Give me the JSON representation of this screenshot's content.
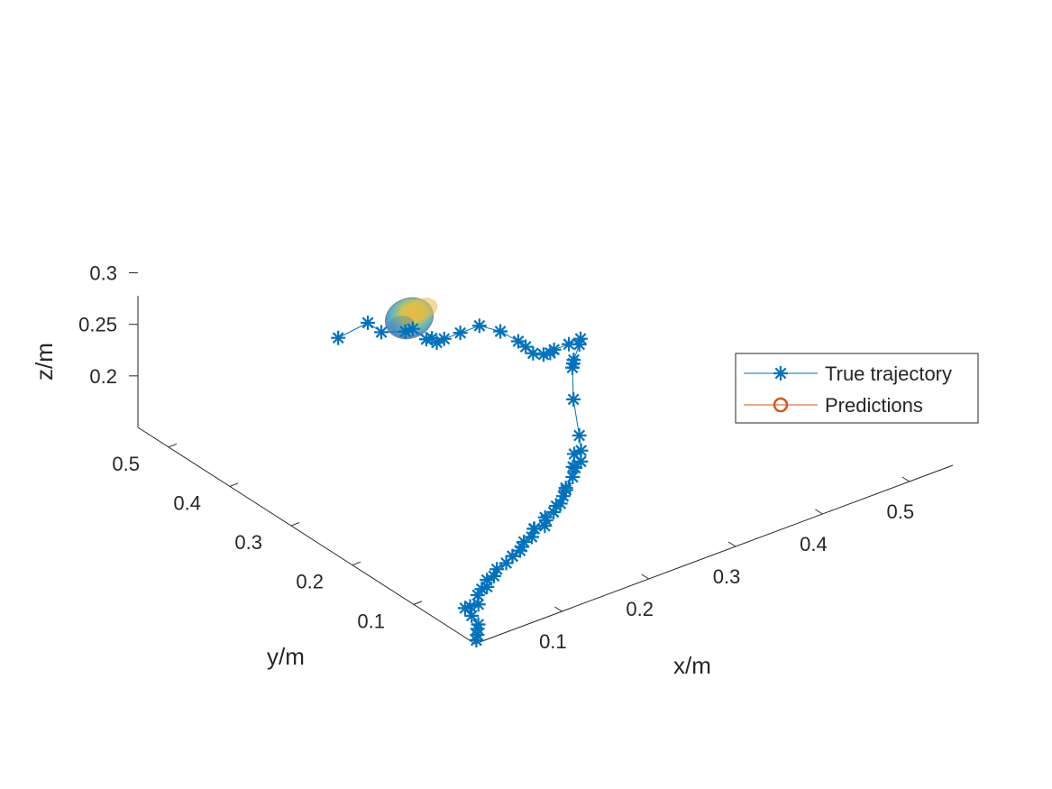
{
  "chart_data": {
    "type": "line",
    "dimensions": "3d",
    "xlabel": "x/m",
    "ylabel": "y/m",
    "zlabel": "z/m",
    "x_ticks": [
      "0.1",
      "0.2",
      "0.3",
      "0.4",
      "0.5"
    ],
    "y_ticks": [
      "0.1",
      "0.2",
      "0.3",
      "0.4",
      "0.5"
    ],
    "z_ticks": [
      "0.2",
      "0.25",
      "0.3"
    ],
    "xlim": [
      0,
      0.55
    ],
    "ylim": [
      0,
      0.55
    ],
    "zlim": [
      0.15,
      0.32
    ],
    "grid": false,
    "legend_position": "right",
    "series": [
      {
        "name": "True trajectory",
        "marker": "asterisk",
        "color": "#0072BD",
        "points_xyz": [
          [
            0.005,
            0.005,
            0.15
          ],
          [
            0.006,
            0.005,
            0.155
          ],
          [
            0.007,
            0.006,
            0.16
          ],
          [
            0.008,
            0.006,
            0.164
          ],
          [
            0.006,
            0.014,
            0.17
          ],
          [
            0.004,
            0.022,
            0.175
          ],
          [
            0.012,
            0.025,
            0.173
          ],
          [
            0.018,
            0.02,
            0.175
          ],
          [
            0.022,
            0.027,
            0.18
          ],
          [
            0.026,
            0.026,
            0.185
          ],
          [
            0.03,
            0.023,
            0.187
          ],
          [
            0.032,
            0.026,
            0.192
          ],
          [
            0.038,
            0.023,
            0.195
          ],
          [
            0.042,
            0.024,
            0.2
          ],
          [
            0.05,
            0.02,
            0.205
          ],
          [
            0.06,
            0.024,
            0.207
          ],
          [
            0.075,
            0.03,
            0.209
          ],
          [
            0.09,
            0.035,
            0.212
          ],
          [
            0.1,
            0.045,
            0.213
          ],
          [
            0.105,
            0.035,
            0.218
          ],
          [
            0.11,
            0.04,
            0.22
          ],
          [
            0.12,
            0.042,
            0.224
          ],
          [
            0.13,
            0.045,
            0.228
          ],
          [
            0.14,
            0.05,
            0.236
          ],
          [
            0.155,
            0.06,
            0.25
          ],
          [
            0.16,
            0.065,
            0.259
          ],
          [
            0.17,
            0.068,
            0.258
          ],
          [
            0.18,
            0.085,
            0.263
          ],
          [
            0.205,
            0.13,
            0.273
          ],
          [
            0.225,
            0.16,
            0.286
          ],
          [
            0.228,
            0.163,
            0.288
          ],
          [
            0.23,
            0.165,
            0.29
          ],
          [
            0.24,
            0.17,
            0.3
          ],
          [
            0.245,
            0.175,
            0.302
          ],
          [
            0.235,
            0.18,
            0.298
          ],
          [
            0.225,
            0.19,
            0.292
          ],
          [
            0.222,
            0.192,
            0.289
          ],
          [
            0.22,
            0.2,
            0.285
          ],
          [
            0.215,
            0.21,
            0.284
          ],
          [
            0.21,
            0.215,
            0.29
          ],
          [
            0.205,
            0.22,
            0.295
          ],
          [
            0.195,
            0.235,
            0.302
          ],
          [
            0.185,
            0.255,
            0.303
          ],
          [
            0.17,
            0.265,
            0.297
          ],
          [
            0.155,
            0.27,
            0.294
          ],
          [
            0.15,
            0.275,
            0.29
          ],
          [
            0.148,
            0.28,
            0.293
          ],
          [
            0.145,
            0.285,
            0.291
          ],
          [
            0.14,
            0.3,
            0.297
          ],
          [
            0.135,
            0.305,
            0.294
          ],
          [
            0.125,
            0.33,
            0.287
          ],
          [
            0.12,
            0.345,
            0.292
          ],
          [
            0.1,
            0.365,
            0.276
          ]
        ],
        "points_xyz_branch": [
          [
            0.06,
            0.024,
            0.207
          ],
          [
            0.08,
            0.04,
            0.2
          ],
          [
            0.095,
            0.055,
            0.198
          ],
          [
            0.11,
            0.06,
            0.204
          ],
          [
            0.13,
            0.07,
            0.205
          ],
          [
            0.15,
            0.08,
            0.206
          ],
          [
            0.165,
            0.09,
            0.207
          ],
          [
            0.175,
            0.1,
            0.208
          ],
          [
            0.19,
            0.11,
            0.21
          ],
          [
            0.2,
            0.12,
            0.212
          ],
          [
            0.21,
            0.125,
            0.213
          ]
        ]
      },
      {
        "name": "Predictions",
        "marker": "circle",
        "color": "#D95319",
        "ellipsoid_center_xyz": [
          0.085,
          0.38,
          0.27
        ]
      }
    ]
  }
}
